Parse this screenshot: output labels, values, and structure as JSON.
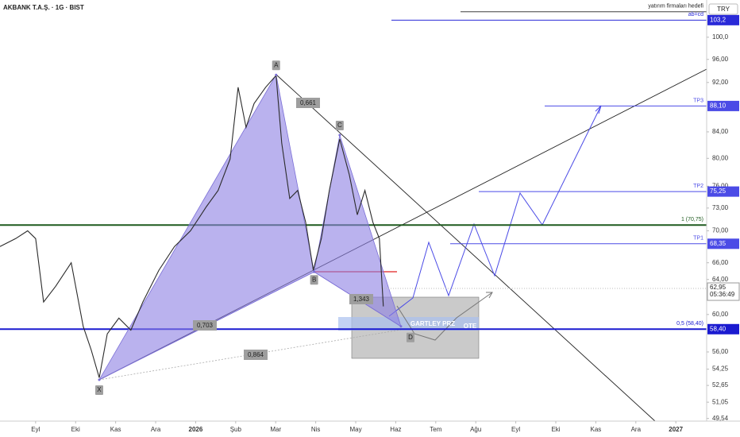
{
  "chart_data": {
    "type": "line",
    "title": "AKBANK T.A.Ş. · 1G · BIST",
    "currency": "TRY",
    "log_scale": true,
    "color": "#2b2b2b",
    "x": [
      -0.89,
      -0.5,
      -0.2,
      0,
      0.2,
      0.5,
      0.89,
      1.19,
      1.39,
      1.59,
      1.79,
      2.08,
      2.38,
      2.68,
      3.08,
      3.47,
      3.87,
      4.27,
      4.56,
      4.86,
      5.06,
      5.26,
      5.46,
      5.75,
      6.01,
      6.15,
      6.35,
      6.55,
      6.75,
      6.94,
      7.14,
      7.34,
      7.6,
      7.84,
      8.04,
      8.23,
      8.43,
      8.59,
      8.69
    ],
    "values": [
      68.0,
      69.0,
      70.0,
      69.0,
      61.4,
      63.2,
      66.0,
      58.7,
      56.2,
      53.4,
      57.9,
      59.6,
      58.3,
      61.4,
      65.1,
      68.0,
      70.0,
      73.2,
      75.4,
      79.9,
      91.2,
      84.7,
      88.5,
      91.2,
      93.2,
      82.3,
      74.3,
      75.4,
      71.1,
      65.1,
      69.0,
      75.4,
      82.9,
      77.6,
      72.1,
      75.4,
      71.1,
      69.0,
      60.9
    ],
    "xlim": [
      -0.89,
      16.77
    ],
    "xticks": [
      {
        "value": 0,
        "label": "Eyl"
      },
      {
        "value": 1,
        "label": "Eki"
      },
      {
        "value": 2,
        "label": "Kas"
      },
      {
        "value": 3,
        "label": "Ara"
      },
      4,
      {
        "value": 5,
        "label": "Şub"
      },
      {
        "value": 6,
        "label": "Mar"
      },
      {
        "value": 7,
        "label": "Nis"
      },
      {
        "value": 8,
        "label": "May"
      },
      {
        "value": 9,
        "label": "Haz"
      },
      {
        "value": 10,
        "label": "Tem"
      },
      {
        "value": 11,
        "label": "Ağu"
      },
      {
        "value": 12,
        "label": "Eyl"
      },
      {
        "value": 13,
        "label": "Eki"
      },
      {
        "value": 14,
        "label": "Kas"
      },
      {
        "value": 15,
        "label": "Ara"
      },
      16
    ],
    "xtick_year_labels": [
      "2026",
      "2027"
    ],
    "ylim": [
      49.3,
      107.1
    ],
    "yticks": [
      {
        "value": 100,
        "label": "100,0"
      },
      {
        "value": 96,
        "label": "96,00"
      },
      {
        "value": 92,
        "label": "92,00"
      },
      {
        "value": 84,
        "label": "84,00"
      },
      {
        "value": 80,
        "label": "80,00"
      },
      {
        "value": 76,
        "label": "76,00"
      },
      {
        "value": 73,
        "label": "73,00"
      },
      {
        "value": 70,
        "label": "70,00"
      },
      {
        "value": 66,
        "label": "66,00"
      },
      {
        "value": 64,
        "label": "64,00"
      },
      {
        "value": 60,
        "label": "60,00"
      },
      {
        "value": 56,
        "label": "56,00"
      },
      {
        "value": 54.25,
        "label": "54,25"
      },
      {
        "value": 52.65,
        "label": "52,65"
      },
      {
        "value": 51.05,
        "label": "51,05"
      },
      {
        "value": 49.54,
        "label": "49,54"
      }
    ],
    "levels": [
      {
        "value": 104.8,
        "text": "yatırım firmaları hedefi",
        "color": "#222222"
      },
      {
        "value": 103.2,
        "label": "103,2",
        "text": "ab=cd",
        "color": "#2a2ad8"
      },
      {
        "value": 88.1,
        "label": "88,10",
        "text": "TP3",
        "color": "#4b4be6"
      },
      {
        "value": 75.25,
        "label": "75,25",
        "text": "TP2",
        "color": "#4b4be6"
      },
      {
        "value": 70.75,
        "text": "1 (70,75)",
        "color": "#1f5a1f"
      },
      {
        "value": 68.35,
        "label": "68,35",
        "text": "TP1",
        "color": "#4b4be6"
      },
      {
        "value": 58.4,
        "label": "58,40",
        "text": "0,5 (58,40)",
        "color": "#1a1ad0"
      }
    ],
    "current_price": {
      "value": 62.95,
      "label": "62,95",
      "countdown": "05:36:49"
    },
    "pattern": [
      {
        "label": "X",
        "x": 1.59,
        "y": 53.2
      },
      {
        "label": "A",
        "x": 6.01,
        "y": 93.3
      },
      {
        "label": "B",
        "x": 6.96,
        "y": 64.9
      },
      {
        "label": "C",
        "x": 7.6,
        "y": 83.5
      },
      {
        "label": "D",
        "x": 9.13,
        "y": 58.7
      }
    ],
    "ratios": [
      "0,661",
      "1,343",
      "0,703",
      "0,864"
    ],
    "zone_labels": [
      "GARTLEY PRZ",
      "OTE"
    ]
  }
}
